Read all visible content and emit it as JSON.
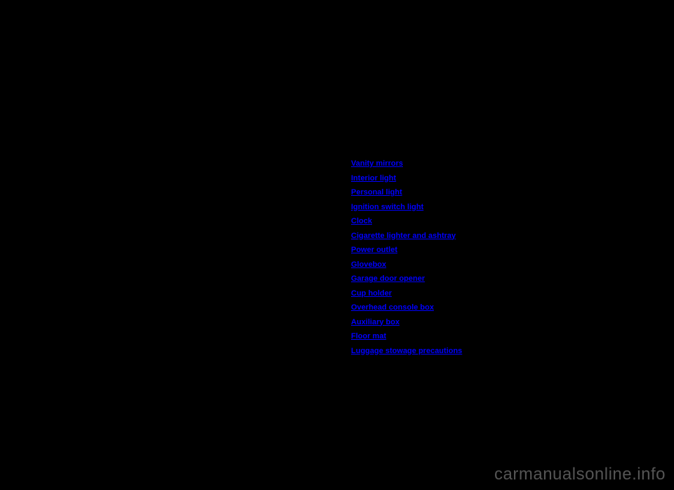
{
  "background_color": "#000000",
  "link_color": "#0000ff",
  "watermark_color": "#9a9a9a",
  "item_fontsize": 11,
  "item_fontweight": "bold",
  "watermark_fontsize": 24,
  "toc": {
    "items": [
      "Vanity mirrors",
      "Interior light",
      "Personal light",
      "Ignition switch light",
      "Clock",
      "Cigarette lighter and ashtray",
      "Power outlet",
      "Glovebox",
      "Garage door opener",
      "Cup holder",
      "Overhead console box",
      "Auxiliary box",
      "Floor mat",
      "Luggage stowage precautions"
    ]
  },
  "watermark": {
    "text": "carmanualsonline.info"
  }
}
